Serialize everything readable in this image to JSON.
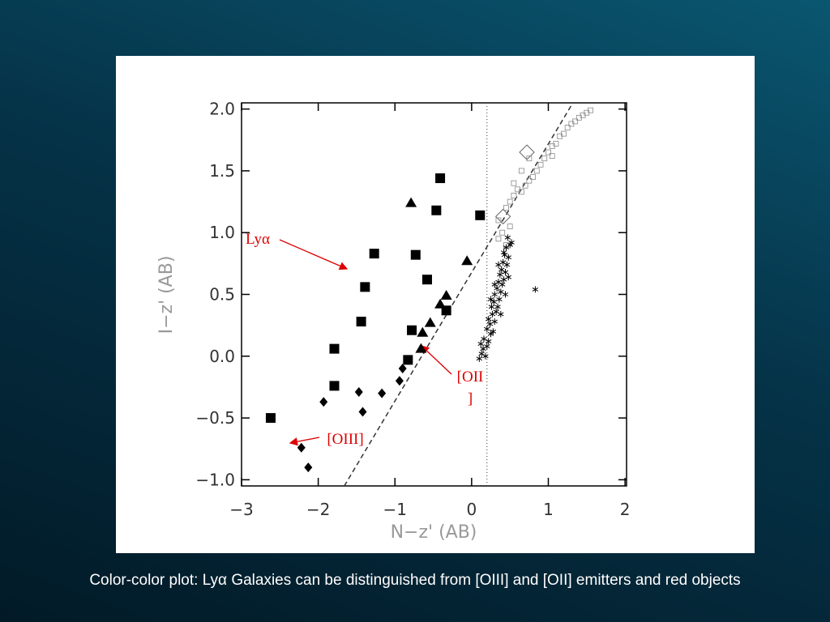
{
  "chart_data": {
    "type": "scatter",
    "xlabel": "N−z' (AB)",
    "ylabel": "I−z' (AB)",
    "xlim": [
      -3,
      2.02
    ],
    "ylim": [
      -1.05,
      2.05
    ],
    "xticks": [
      {
        "value": -3,
        "label": "−3"
      },
      {
        "value": -2,
        "label": "−2"
      },
      {
        "value": -1,
        "label": "−1"
      },
      0,
      1,
      2
    ],
    "yticks": [
      {
        "value": -1,
        "label": "−1.0"
      },
      {
        "value": -0.5,
        "label": "−0.5"
      },
      {
        "value": 0,
        "label": "0.0"
      },
      {
        "value": 0.5,
        "label": "0.5"
      },
      {
        "value": 1,
        "label": "1.0"
      },
      {
        "value": 1.5,
        "label": "1.5"
      },
      {
        "value": 2,
        "label": "2.0"
      }
    ],
    "series": [
      {
        "marker": "square-filled",
        "color": "#000",
        "x": [
          -0.41,
          -0.46,
          0.11,
          -1.27,
          -0.73,
          -1.39,
          -0.58,
          -1.44,
          -0.33,
          -0.78,
          -0.83,
          -1.79,
          -1.79,
          -2.62
        ],
        "values": [
          1.44,
          1.18,
          1.14,
          0.83,
          0.82,
          0.56,
          0.62,
          0.28,
          0.37,
          0.21,
          -0.03,
          0.06,
          -0.24,
          -0.5
        ]
      },
      {
        "marker": "triangle-filled",
        "color": "#000",
        "x": [
          -0.79,
          -0.06,
          -0.33,
          -0.41,
          -0.54,
          -0.64,
          -0.66
        ],
        "values": [
          1.24,
          0.77,
          0.49,
          0.42,
          0.27,
          0.19,
          0.06
        ]
      },
      {
        "marker": "diamond-filled",
        "color": "#000",
        "x": [
          -0.9,
          -0.94,
          -1.17,
          -1.47,
          -1.42,
          -1.93,
          -2.22,
          -2.13
        ],
        "values": [
          -0.1,
          -0.2,
          -0.3,
          -0.29,
          -0.45,
          -0.37,
          -0.74,
          -0.9
        ]
      },
      {
        "marker": "diamond-open",
        "color": "#666",
        "x": [
          0.72,
          0.41
        ],
        "values": [
          1.65,
          1.13
        ]
      },
      {
        "marker": "square-open",
        "color": "#888",
        "x": [
          0.45,
          0.5,
          0.55,
          0.6,
          0.65,
          0.7,
          0.75,
          0.8,
          0.85,
          0.9,
          0.95,
          1.0,
          1.05,
          1.1,
          1.15,
          1.2,
          1.25,
          1.3,
          1.35,
          1.4,
          1.45,
          1.5,
          1.55,
          0.4,
          0.35,
          0.45,
          0.55,
          0.65,
          0.75,
          0.35,
          0.5,
          1.05
        ],
        "values": [
          1.2,
          1.25,
          1.3,
          1.35,
          1.33,
          1.38,
          1.42,
          1.45,
          1.5,
          1.55,
          1.6,
          1.65,
          1.7,
          1.72,
          1.78,
          1.8,
          1.85,
          1.88,
          1.9,
          1.93,
          1.95,
          1.97,
          1.99,
          1.0,
          0.95,
          0.9,
          1.4,
          1.5,
          1.6,
          1.1,
          1.05,
          1.62
        ]
      },
      {
        "marker": "asterisk",
        "color": "#000",
        "x": [
          0.1,
          0.13,
          0.15,
          0.12,
          0.18,
          0.2,
          0.16,
          0.22,
          0.25,
          0.2,
          0.24,
          0.28,
          0.22,
          0.27,
          0.3,
          0.26,
          0.32,
          0.29,
          0.34,
          0.3,
          0.36,
          0.33,
          0.38,
          0.35,
          0.4,
          0.37,
          0.42,
          0.39,
          0.44,
          0.41,
          0.46,
          0.43,
          0.48,
          0.45,
          0.5,
          0.47,
          0.52,
          0.38,
          0.3,
          0.25,
          0.42,
          0.35,
          0.48,
          0.44,
          0.83
        ],
        "values": [
          -0.02,
          0.02,
          0.06,
          0.1,
          0.0,
          0.08,
          0.14,
          0.12,
          0.18,
          0.22,
          0.26,
          0.2,
          0.3,
          0.34,
          0.28,
          0.4,
          0.36,
          0.44,
          0.4,
          0.5,
          0.46,
          0.55,
          0.52,
          0.6,
          0.58,
          0.66,
          0.62,
          0.7,
          0.68,
          0.76,
          0.74,
          0.82,
          0.8,
          0.88,
          0.9,
          0.96,
          0.92,
          0.34,
          0.58,
          0.46,
          0.84,
          0.74,
          0.64,
          0.5,
          0.54
        ]
      }
    ],
    "lines": [
      {
        "style": "dashed",
        "x": [
          -1.66,
          1.32
        ],
        "y": [
          -1.05,
          2.05
        ]
      },
      {
        "style": "dotted",
        "x": [
          0.2,
          0.2
        ],
        "y": [
          -1.05,
          2.05
        ]
      }
    ],
    "annotations": [
      {
        "text": [
          "Lyα"
        ]
      },
      {
        "text": [
          "[OII",
          "]"
        ]
      },
      {
        "text": [
          "[OIII]"
        ]
      }
    ]
  },
  "caption": "Color-color plot: Lyα Galaxies can be distinguished from [OIII] and [OII] emitters and red objects"
}
